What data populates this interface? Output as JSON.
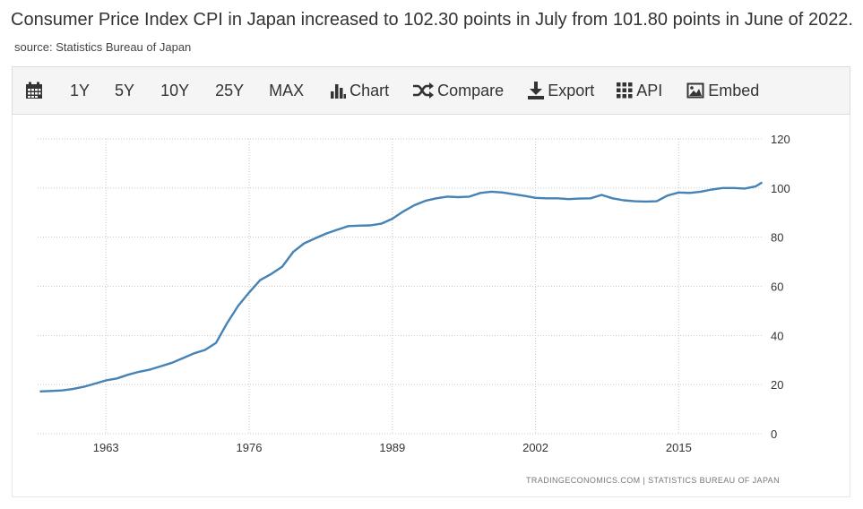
{
  "headline": {
    "text": "Consumer Price Index CPI in Japan increased to 102.30 points in July from 101.80 points in June of 2022.",
    "source": "source: Statistics Bureau of Japan"
  },
  "toolbar": {
    "items": [
      {
        "label": "",
        "icon": "calendar-icon"
      },
      {
        "label": "1Y"
      },
      {
        "label": "5Y"
      },
      {
        "label": "10Y"
      },
      {
        "label": "25Y"
      },
      {
        "label": "MAX"
      },
      {
        "label": "Chart",
        "icon": "bar-chart-icon"
      },
      {
        "label": "Compare",
        "icon": "shuffle-icon"
      },
      {
        "label": "Export",
        "icon": "download-icon"
      },
      {
        "label": "API",
        "icon": "grid-icon"
      },
      {
        "label": "Embed",
        "icon": "image-icon"
      }
    ]
  },
  "chart_data": {
    "type": "line",
    "series": [
      {
        "color": "#4682b4",
        "points": [
          [
            1957.0,
            17.2
          ],
          [
            1958.0,
            17.4
          ],
          [
            1959.0,
            17.6
          ],
          [
            1960.0,
            18.2
          ],
          [
            1961.0,
            19.1
          ],
          [
            1962.0,
            20.4
          ],
          [
            1963.0,
            21.7
          ],
          [
            1964.0,
            22.5
          ],
          [
            1965.0,
            24.0
          ],
          [
            1966.0,
            25.2
          ],
          [
            1967.0,
            26.1
          ],
          [
            1968.0,
            27.5
          ],
          [
            1969.0,
            28.9
          ],
          [
            1970.0,
            30.8
          ],
          [
            1971.0,
            32.7
          ],
          [
            1972.0,
            34.1
          ],
          [
            1973.0,
            37.0
          ],
          [
            1974.0,
            45.0
          ],
          [
            1975.0,
            52.0
          ],
          [
            1976.0,
            57.5
          ],
          [
            1977.0,
            62.5
          ],
          [
            1978.0,
            65.0
          ],
          [
            1979.0,
            68.0
          ],
          [
            1980.0,
            74.0
          ],
          [
            1981.0,
            77.5
          ],
          [
            1982.0,
            79.5
          ],
          [
            1983.0,
            81.5
          ],
          [
            1984.0,
            83.0
          ],
          [
            1985.0,
            84.5
          ],
          [
            1986.0,
            84.7
          ],
          [
            1987.0,
            84.8
          ],
          [
            1988.0,
            85.5
          ],
          [
            1989.0,
            87.5
          ],
          [
            1990.0,
            90.5
          ],
          [
            1991.0,
            93.0
          ],
          [
            1992.0,
            94.8
          ],
          [
            1993.0,
            95.8
          ],
          [
            1994.0,
            96.5
          ],
          [
            1995.0,
            96.3
          ],
          [
            1996.0,
            96.5
          ],
          [
            1997.0,
            98.0
          ],
          [
            1998.0,
            98.5
          ],
          [
            1999.0,
            98.2
          ],
          [
            2000.0,
            97.5
          ],
          [
            2001.0,
            96.8
          ],
          [
            2002.0,
            96.0
          ],
          [
            2003.0,
            95.8
          ],
          [
            2004.0,
            95.8
          ],
          [
            2005.0,
            95.5
          ],
          [
            2006.0,
            95.7
          ],
          [
            2007.0,
            95.8
          ],
          [
            2008.0,
            97.2
          ],
          [
            2009.0,
            95.8
          ],
          [
            2010.0,
            95.0
          ],
          [
            2011.0,
            94.6
          ],
          [
            2012.0,
            94.5
          ],
          [
            2013.0,
            94.6
          ],
          [
            2014.0,
            97.0
          ],
          [
            2015.0,
            98.2
          ],
          [
            2016.0,
            98.0
          ],
          [
            2017.0,
            98.5
          ],
          [
            2018.0,
            99.4
          ],
          [
            2019.0,
            100.0
          ],
          [
            2020.0,
            100.0
          ],
          [
            2021.0,
            99.8
          ],
          [
            2022.0,
            100.7
          ],
          [
            2022.58,
            102.3
          ]
        ]
      }
    ],
    "xlim": [
      1956.8,
      2022.7
    ],
    "ylim": [
      0,
      120
    ],
    "x_ticks": [
      "1963",
      "1976",
      "1989",
      "2002",
      "2015"
    ],
    "x_tick_values": [
      1963,
      1976,
      1989,
      2002,
      2015
    ],
    "y_ticks": [
      "0",
      "20",
      "40",
      "60",
      "80",
      "100",
      "120"
    ],
    "y_tick_values": [
      0,
      20,
      40,
      60,
      80,
      100,
      120
    ],
    "grid": true,
    "credit": "TRADINGECONOMICS.COM  |  STATISTICS BUREAU OF JAPAN"
  }
}
